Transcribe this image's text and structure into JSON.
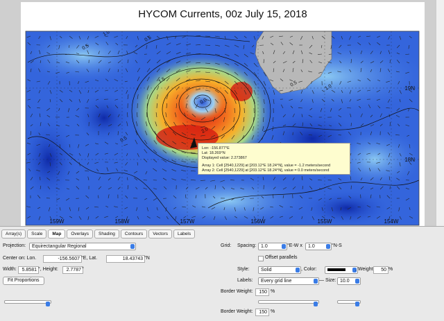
{
  "map": {
    "title": "HYCOM Currents, 00z  July 15, 2018",
    "lon_labels": [
      "159W",
      "158W",
      "157W",
      "156W",
      "155W",
      "154W"
    ],
    "lat_labels": [
      "19N",
      "18N"
    ],
    "contour_labels": [
      "0.5",
      "1.0",
      "0.5",
      "1.5",
      "0.0",
      "2.0",
      "0.5",
      "1.0",
      "0.5"
    ],
    "tooltip": {
      "lon": "Lon: -156.877°E",
      "lat": "Lat: 18.269°N",
      "value": "Displayed value: 2.273867",
      "array1": "Array 1: Cell  [2540,1229] at [203.12°E 18.24°N], value = -1.2 meters/second",
      "array2": "Array 2: Cell  [2540,1229] at [203.12°E 18.24°N], value = 0.0 meters/second"
    }
  },
  "tabs": [
    "Array(s)",
    "Scale",
    "Map",
    "Overlays",
    "Shading",
    "Contours",
    "Vectors",
    "Labels"
  ],
  "panel": {
    "projection_label": "Projection:",
    "projection": "Equirectangular Regional",
    "center_label": "Center on: Lon.",
    "lon": "-156.5607",
    "lon_unit": "°E, Lat.",
    "lat": "18.43743",
    "lat_unit": "°N",
    "width_label": "Width:",
    "width": "5.8581",
    "width_unit": "°, Height:",
    "height": "2.7787",
    "height_unit": "°",
    "fit_button": "Fit Proportions",
    "grid_label": "Grid:",
    "spacing_label": "Spacing:",
    "spacing_ew": "1.0",
    "ew_unit": "°E-W x",
    "spacing_ns": "1.0",
    "ns_unit": "°N-S",
    "offset": "Offset parallels",
    "style_label": "Style:",
    "style": "Solid",
    "color_label": ", Color:",
    "weight_label": ", Weight:",
    "weight": "50",
    "weight_unit": "%",
    "labels_label": "Labels:",
    "labels": "Every grid line",
    "size_label": "— Size:",
    "size": "10.0",
    "border1_label": "Border Weight:",
    "border1": "150",
    "border1_unit": "%",
    "border2_label": "Border Weight:",
    "border2": "150",
    "border2_unit": "%"
  }
}
